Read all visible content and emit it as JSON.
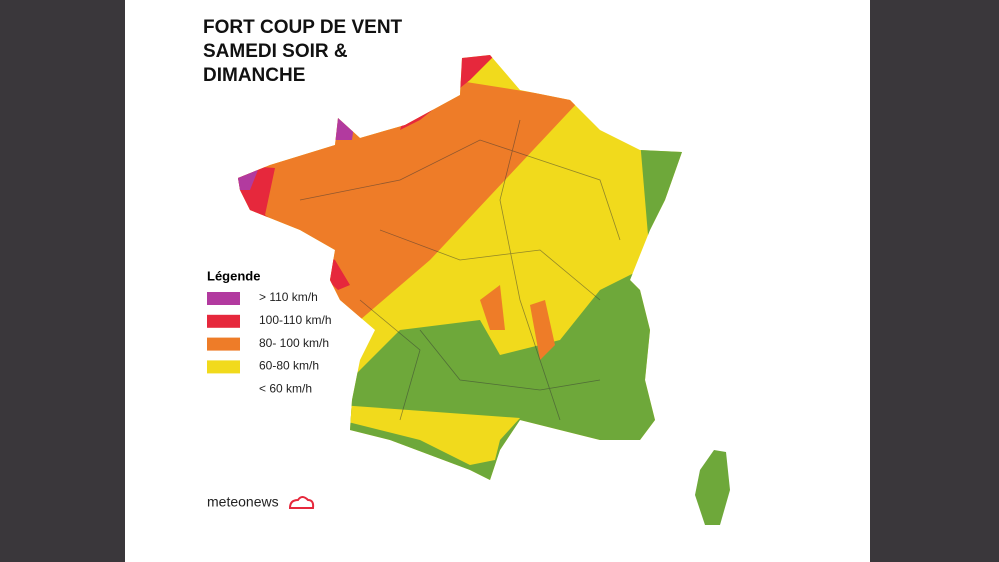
{
  "title": {
    "lines": [
      "FORT COUP DE VENT",
      "SAMEDI SOIR &",
      "DIMANCHE"
    ]
  },
  "legend": {
    "title": "Légende",
    "items": [
      {
        "label": "> 110 km/h",
        "color": "#b23a9f"
      },
      {
        "label": "100-110 km/h",
        "color": "#e6283c"
      },
      {
        "label": "80- 100 km/h",
        "color": "#ee7c28"
      },
      {
        "label": "60-80 km/h",
        "color": "#f1da1c"
      },
      {
        "label": "< 60 km/h",
        "color": "#ffffff"
      }
    ]
  },
  "brand": "meteonews"
}
